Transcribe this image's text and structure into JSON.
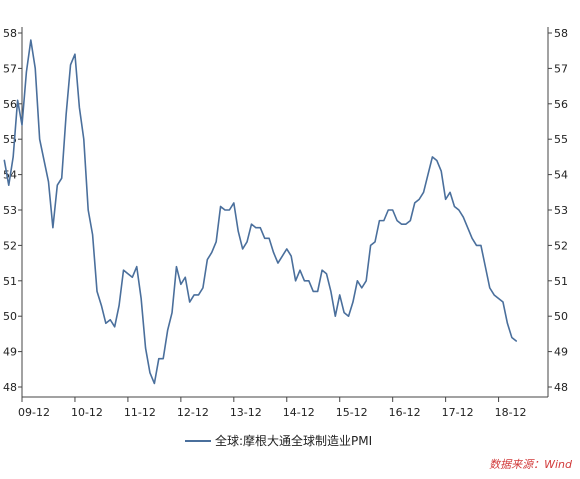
{
  "chart_data": {
    "type": "line",
    "ylim": [
      48,
      58
    ],
    "yticks": [
      "48",
      "49",
      "50",
      "51",
      "52",
      "53",
      "54",
      "55",
      "56",
      "57",
      "58"
    ],
    "x_labels": [
      "09-12",
      "10-12",
      "11-12",
      "12-12",
      "13-12",
      "14-12",
      "15-12",
      "16-12",
      "17-12",
      "18-12"
    ],
    "grid": false,
    "legend_position": "bottom",
    "series": [
      {
        "name": "全球:摩根大通全球制造业PMI",
        "color": "#4a6f9c",
        "start_index": -4,
        "values": [
          54.4,
          53.7,
          54.5,
          56.1,
          55.4,
          56.9,
          57.8,
          57.0,
          55.0,
          54.4,
          53.8,
          52.5,
          53.7,
          53.9,
          55.7,
          57.1,
          57.4,
          55.9,
          55.0,
          53.0,
          52.3,
          50.7,
          50.3,
          49.8,
          49.9,
          49.7,
          50.3,
          51.3,
          51.2,
          51.1,
          51.4,
          50.5,
          49.1,
          48.4,
          48.1,
          48.8,
          48.8,
          49.6,
          50.1,
          51.4,
          50.9,
          51.1,
          50.4,
          50.6,
          50.6,
          50.8,
          51.6,
          51.8,
          52.1,
          53.1,
          53.0,
          53.0,
          53.2,
          52.4,
          51.9,
          52.1,
          52.6,
          52.5,
          52.5,
          52.2,
          52.2,
          51.8,
          51.5,
          51.7,
          51.9,
          51.7,
          51.0,
          51.3,
          51.0,
          51.0,
          50.7,
          50.7,
          51.3,
          51.2,
          50.7,
          50.0,
          50.6,
          50.1,
          50.0,
          50.4,
          51.0,
          50.8,
          51.0,
          52.0,
          52.1,
          52.7,
          52.7,
          53.0,
          53.0,
          52.7,
          52.6,
          52.6,
          52.7,
          53.2,
          53.3,
          53.5,
          54.0,
          54.5,
          54.4,
          54.1,
          53.3,
          53.5,
          53.1,
          53.0,
          52.8,
          52.5,
          52.2,
          52.0,
          52.0,
          51.4,
          50.8,
          50.6,
          50.5,
          50.4,
          49.8,
          49.4,
          49.3
        ]
      }
    ]
  },
  "legend": {
    "label": "全球:摩根大通全球制造业PMI"
  },
  "source": {
    "text": "数据来源：Wind"
  }
}
